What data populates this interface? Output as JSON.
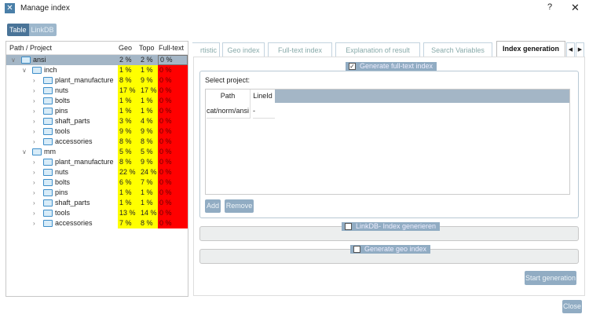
{
  "window": {
    "title": "Manage index",
    "help": "?",
    "close": "✕",
    "icon": "tools-icon"
  },
  "view_toggle": {
    "options": [
      "Table",
      "LinkDB"
    ],
    "selected": "Table"
  },
  "tree": {
    "headers": [
      "Path / Project",
      "Geo",
      "Topo",
      "Full-text"
    ],
    "rows": [
      {
        "level": 0,
        "name": "ansi",
        "geo": "2 %",
        "topo": "2 %",
        "full": "0 %",
        "expanded": true,
        "selected": true
      },
      {
        "level": 1,
        "name": "inch",
        "geo": "1 %",
        "topo": "1 %",
        "full": "0 %",
        "expanded": true
      },
      {
        "level": 2,
        "name": "plant_manufacture",
        "geo": "8 %",
        "topo": "9 %",
        "full": "0 %"
      },
      {
        "level": 2,
        "name": "nuts",
        "geo": "17 %",
        "topo": "17 %",
        "full": "0 %"
      },
      {
        "level": 2,
        "name": "bolts",
        "geo": "1 %",
        "topo": "1 %",
        "full": "0 %"
      },
      {
        "level": 2,
        "name": "pins",
        "geo": "1 %",
        "topo": "1 %",
        "full": "0 %"
      },
      {
        "level": 2,
        "name": "shaft_parts",
        "geo": "3 %",
        "topo": "4 %",
        "full": "0 %"
      },
      {
        "level": 2,
        "name": "tools",
        "geo": "9 %",
        "topo": "9 %",
        "full": "0 %"
      },
      {
        "level": 2,
        "name": "accessories",
        "geo": "8 %",
        "topo": "8 %",
        "full": "0 %"
      },
      {
        "level": 1,
        "name": "mm",
        "geo": "5 %",
        "topo": "5 %",
        "full": "0 %",
        "expanded": true
      },
      {
        "level": 2,
        "name": "plant_manufacture",
        "geo": "8 %",
        "topo": "9 %",
        "full": "0 %"
      },
      {
        "level": 2,
        "name": "nuts",
        "geo": "22 %",
        "topo": "24 %",
        "full": "0 %"
      },
      {
        "level": 2,
        "name": "bolts",
        "geo": "6 %",
        "topo": "7 %",
        "full": "0 %"
      },
      {
        "level": 2,
        "name": "pins",
        "geo": "1 %",
        "topo": "1 %",
        "full": "0 %"
      },
      {
        "level": 2,
        "name": "shaft_parts",
        "geo": "1 %",
        "topo": "1 %",
        "full": "0 %"
      },
      {
        "level": 2,
        "name": "tools",
        "geo": "13 %",
        "topo": "14 %",
        "full": "0 %"
      },
      {
        "level": 2,
        "name": "accessories",
        "geo": "7 %",
        "topo": "8 %",
        "full": "0 %"
      }
    ]
  },
  "tabs": [
    "rtistic",
    "Geo index",
    "Full-text index",
    "Explanation of result",
    "Search Variables",
    "Index generation"
  ],
  "active_tab": "Index generation",
  "fulltext": {
    "label": "Generate full-text index",
    "checked": true,
    "select_label": "Select project:",
    "columns": [
      "Path",
      "LineId"
    ],
    "rows": [
      [
        "cat/norm/ansi",
        "-"
      ]
    ],
    "add": "Add",
    "remove": "Remove"
  },
  "linkdb": {
    "label": "LinkDB- Index generieren",
    "checked": false
  },
  "geo": {
    "label": "Generate geo index",
    "checked": false
  },
  "start": "Start generation",
  "close": "Close",
  "colors": {
    "partial": "#ffff00",
    "none": "#ff0000",
    "accent": "#91acc3"
  }
}
